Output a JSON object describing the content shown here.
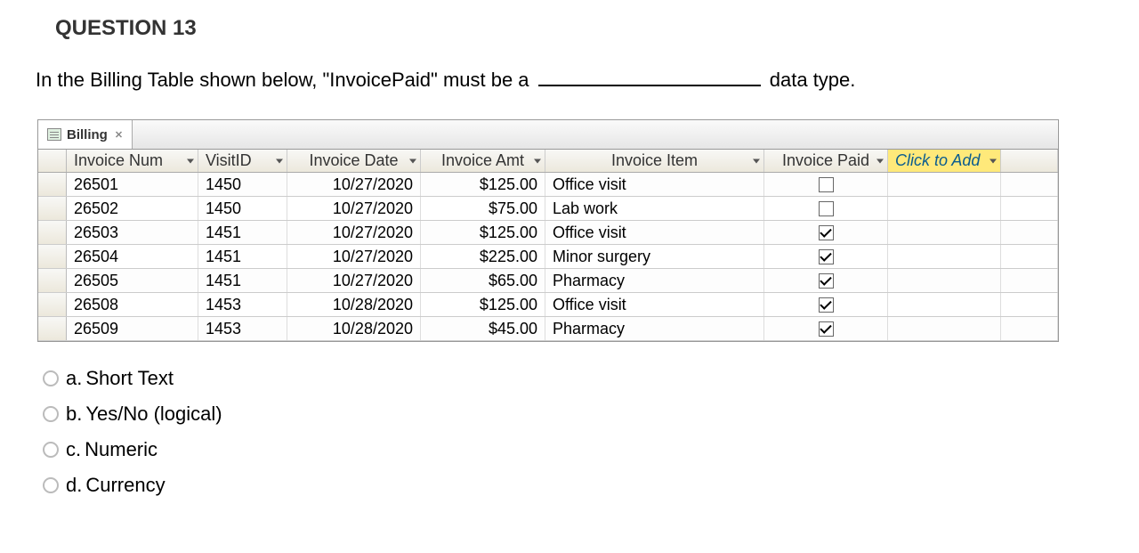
{
  "question": {
    "title": "QUESTION 13",
    "text_before": "In the Billing Table shown below, \"InvoicePaid\" must be a ",
    "text_after": " data type."
  },
  "tab_label": "Billing",
  "columns": [
    {
      "key": "invoice_num",
      "label": "Invoice Num",
      "class": "col-num",
      "align": "left",
      "has_arrow": true
    },
    {
      "key": "visit_id",
      "label": "VisitID",
      "class": "col-visit",
      "align": "left",
      "has_arrow": true
    },
    {
      "key": "invoice_date",
      "label": "Invoice Date",
      "class": "col-date",
      "align": "center",
      "has_arrow": true
    },
    {
      "key": "invoice_amt",
      "label": "Invoice Amt",
      "class": "col-amt",
      "align": "center",
      "has_arrow": true
    },
    {
      "key": "invoice_item",
      "label": "Invoice Item",
      "class": "col-item",
      "align": "center",
      "has_arrow": true
    },
    {
      "key": "invoice_paid",
      "label": "Invoice Paid",
      "class": "col-paid",
      "align": "center",
      "has_arrow": true
    },
    {
      "key": "click_add",
      "label": "Click to Add",
      "class": "col-add click-add",
      "align": "left",
      "has_arrow": true
    }
  ],
  "rows": [
    {
      "invoice_num": "26501",
      "visit_id": "1450",
      "invoice_date": "10/27/2020",
      "invoice_amt": "$125.00",
      "invoice_item": "Office visit",
      "invoice_paid": false
    },
    {
      "invoice_num": "26502",
      "visit_id": "1450",
      "invoice_date": "10/27/2020",
      "invoice_amt": "$75.00",
      "invoice_item": "Lab work",
      "invoice_paid": false
    },
    {
      "invoice_num": "26503",
      "visit_id": "1451",
      "invoice_date": "10/27/2020",
      "invoice_amt": "$125.00",
      "invoice_item": "Office visit",
      "invoice_paid": true
    },
    {
      "invoice_num": "26504",
      "visit_id": "1451",
      "invoice_date": "10/27/2020",
      "invoice_amt": "$225.00",
      "invoice_item": "Minor surgery",
      "invoice_paid": true
    },
    {
      "invoice_num": "26505",
      "visit_id": "1451",
      "invoice_date": "10/27/2020",
      "invoice_amt": "$65.00",
      "invoice_item": "Pharmacy",
      "invoice_paid": true
    },
    {
      "invoice_num": "26508",
      "visit_id": "1453",
      "invoice_date": "10/28/2020",
      "invoice_amt": "$125.00",
      "invoice_item": "Office visit",
      "invoice_paid": true
    },
    {
      "invoice_num": "26509",
      "visit_id": "1453",
      "invoice_date": "10/28/2020",
      "invoice_amt": "$45.00",
      "invoice_item": "Pharmacy",
      "invoice_paid": true
    }
  ],
  "options": [
    {
      "letter": "a.",
      "text": "Short Text"
    },
    {
      "letter": "b.",
      "text": "Yes/No (logical)"
    },
    {
      "letter": "c.",
      "text": "Numeric"
    },
    {
      "letter": "d.",
      "text": "Currency"
    }
  ]
}
